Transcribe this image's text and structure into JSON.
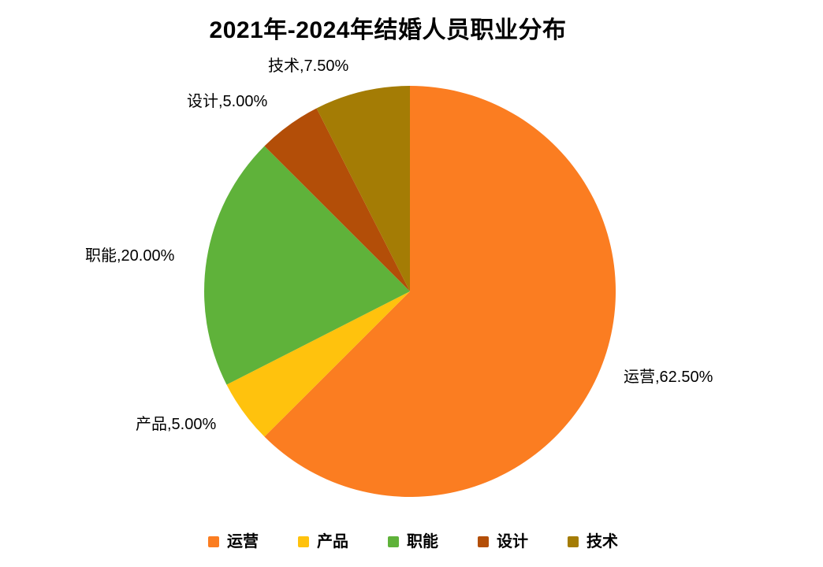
{
  "title": "2021年-2024年结婚人员职业分布",
  "chart_data": {
    "type": "pie",
    "title": "2021年-2024年结婚人员职业分布",
    "unit": "percent",
    "start_angle_deg": 0,
    "direction": "clockwise",
    "legend_position": "bottom",
    "slices": [
      {
        "id": "operations",
        "name": "运营",
        "value": 62.5,
        "callout": "运营,62.50%",
        "color": "#FB7D21"
      },
      {
        "id": "product",
        "name": "产品",
        "value": 5,
        "callout": "产品,5.00%",
        "color": "#FFC20D"
      },
      {
        "id": "functions",
        "name": "职能",
        "value": 20,
        "callout": "职能,20.00%",
        "color": "#5FB23A"
      },
      {
        "id": "design",
        "name": "设计",
        "value": 5,
        "callout": "设计,5.00%",
        "color": "#B34E08"
      },
      {
        "id": "technology",
        "name": "技术",
        "value": 7.5,
        "callout": "技术,7.50%",
        "color": "#A47C05"
      }
    ]
  }
}
